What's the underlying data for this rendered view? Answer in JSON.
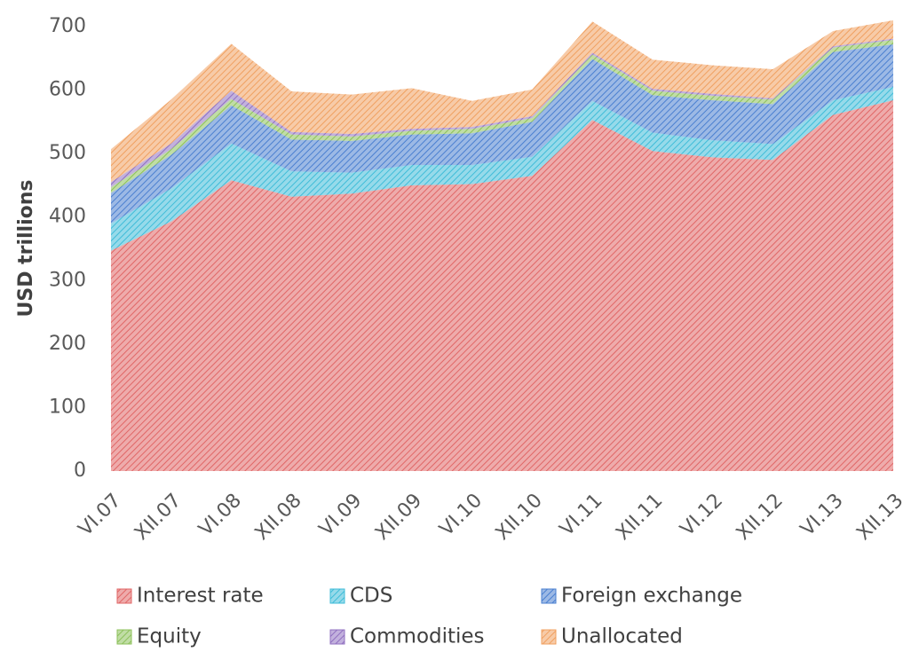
{
  "chart_data": {
    "type": "stacked_area",
    "y_label": "USD trillions",
    "categories": [
      "VI.07",
      "XII.07",
      "VI.08",
      "XII.08",
      "VI.09",
      "XII.09",
      "VI.10",
      "XII.10",
      "VI.11",
      "XII.11",
      "VI.12",
      "XII.12",
      "VI.13",
      "XII.13"
    ],
    "series": [
      {
        "name": "Interest rate",
        "color": "#e06666",
        "values": [
          347,
          393,
          458,
          432,
          437,
          450,
          452,
          465,
          553,
          504,
          494,
          490,
          561,
          584
        ]
      },
      {
        "name": "CDS",
        "color": "#3fbcd8",
        "values": [
          43,
          52,
          58,
          40,
          33,
          32,
          30,
          30,
          30,
          29,
          27,
          25,
          23,
          21
        ]
      },
      {
        "name": "Foreign exchange",
        "color": "#4a7fd0",
        "values": [
          48,
          53,
          60,
          50,
          50,
          48,
          50,
          55,
          66,
          59,
          63,
          63,
          76,
          67
        ]
      },
      {
        "name": "Equity",
        "color": "#8cc05a",
        "values": [
          9,
          9,
          10,
          8,
          7,
          6,
          7,
          6,
          7,
          7,
          7,
          7,
          7,
          7
        ]
      },
      {
        "name": "Commodities",
        "color": "#9070c0",
        "values": [
          8,
          9,
          13,
          4,
          4,
          3,
          3,
          3,
          3,
          3,
          3,
          2,
          2,
          2
        ]
      },
      {
        "name": "Unallocated",
        "color": "#f0a060",
        "values": [
          52,
          69,
          74,
          64,
          62,
          64,
          41,
          42,
          49,
          46,
          45,
          46,
          24,
          29
        ]
      }
    ],
    "ylim": [
      0,
      700
    ],
    "yticks": [
      0,
      100,
      200,
      300,
      400,
      500,
      600,
      700
    ],
    "grid": false,
    "legend": "bottom"
  }
}
